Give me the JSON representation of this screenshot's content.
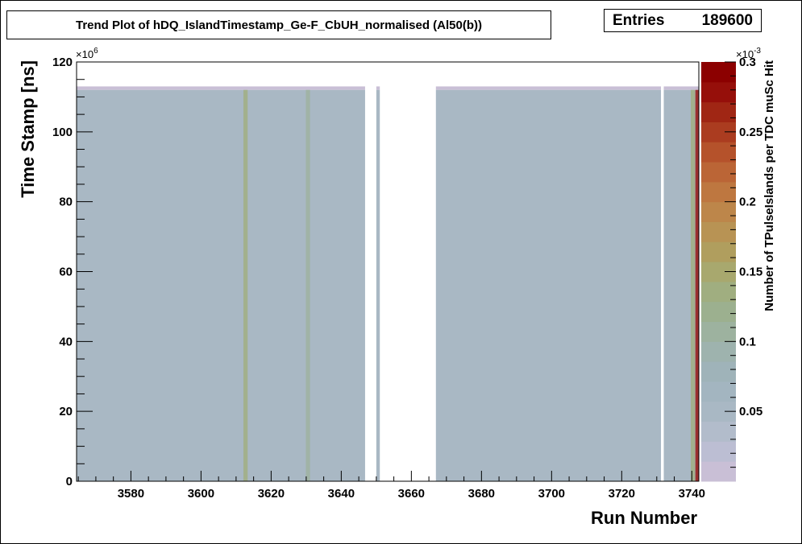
{
  "title": "Trend Plot of hDQ_IslandTimestamp_Ge-F_CbUH_normalised (Al50(b))",
  "stats": {
    "label": "Entries",
    "value": "189600"
  },
  "chart_data": {
    "type": "heatmap",
    "xlabel": "Run Number",
    "ylabel": "Time Stamp [ns]",
    "zlabel": "Number of TPulseIslands per TDC muSc Hit",
    "x_ticks": [
      "3580",
      "3600",
      "3620",
      "3640",
      "3660",
      "3680",
      "3700",
      "3720",
      "3740"
    ],
    "y_ticks": [
      "0",
      "20",
      "40",
      "60",
      "80",
      "100",
      "120"
    ],
    "y_multiplier": "×10^6",
    "z_ticks": [
      "0.05",
      "0.1",
      "0.15",
      "0.2",
      "0.25",
      "0.3"
    ],
    "z_multiplier": "×10^-3",
    "xlim": [
      3564.5,
      3742
    ],
    "ylim": [
      0,
      120
    ],
    "zlim": [
      0,
      0.3
    ],
    "fill_top": 112,
    "fill_cap": 113,
    "cell_value": 0.05,
    "cap_value": 0.005,
    "filled_ranges": [
      [
        3564.5,
        3646.8
      ],
      [
        3650,
        3651
      ],
      [
        3667,
        3731.2
      ],
      [
        3732,
        3742
      ]
    ],
    "highlighted_runs": [
      {
        "run": 3612.7,
        "value": 0.13
      },
      {
        "run": 3630.5,
        "value": 0.11
      },
      {
        "run": 3740.3,
        "value": 0.14
      },
      {
        "run": 3741.6,
        "value": 0.28
      }
    ]
  },
  "colors": {
    "palette": [
      "#c9bfd6",
      "#bcbed3",
      "#b2bccb",
      "#a9b8c4",
      "#a3b5c0",
      "#9fb3b9",
      "#9eb3ae",
      "#9db29f",
      "#9cb08f",
      "#a0ae80",
      "#a8a86e",
      "#b09e5e",
      "#b89354",
      "#bd864a",
      "#be7740",
      "#bb6536",
      "#b5522b",
      "#ab3c20",
      "#a02614",
      "#960f0a",
      "#8c0000"
    ],
    "frame": "#000000"
  }
}
